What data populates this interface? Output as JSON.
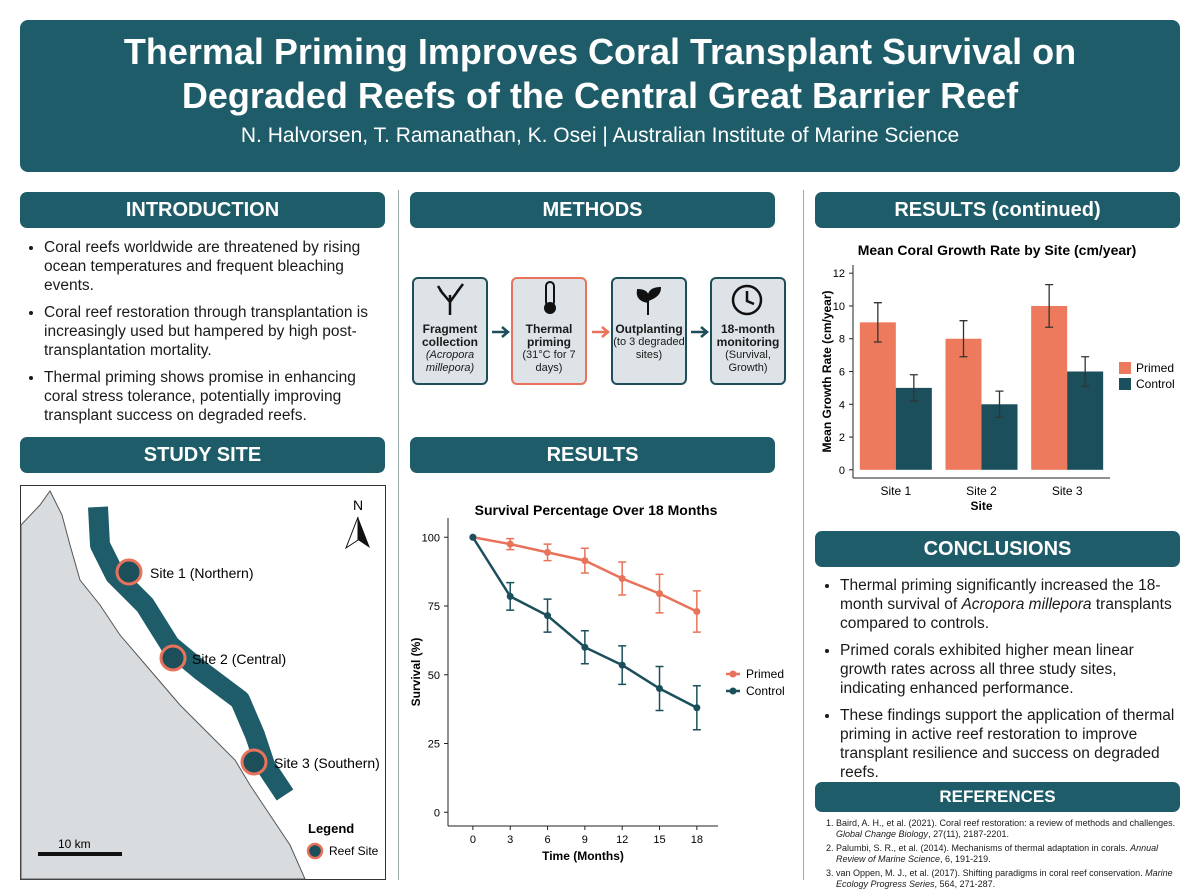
{
  "header": {
    "title": "Thermal Priming Improves Coral Transplant Survival on Degraded Reefs of the Central Great Barrier Reef",
    "authors": "N. Halvorsen, T. Ramanathan, K. Osei | Australian Institute of Marine Science"
  },
  "introduction": {
    "heading": "INTRODUCTION",
    "bullets": [
      "Coral reefs worldwide are threatened by rising ocean temperatures and frequent bleaching events.",
      "Coral reef restoration through transplantation is increasingly used but hampered by high post-transplantation mortality.",
      "Thermal priming shows promise in enhancing coral stress tolerance, potentially improving transplant success on degraded reefs."
    ]
  },
  "study_site": {
    "heading": "STUDY SITE",
    "sites": [
      "Site 1 (Northern)",
      "Site 2 (Central)",
      "Site 3 (Southern)"
    ],
    "north": "N",
    "scale": "10 km",
    "legend_title": "Legend",
    "legend_item": "Reef Site"
  },
  "methods": {
    "heading": "METHODS",
    "steps": [
      {
        "title": "Fragment collection",
        "detail": "(Acropora millepora)"
      },
      {
        "title": "Thermal priming",
        "detail": "(31°C for 7 days)"
      },
      {
        "title": "Outplanting",
        "detail": "(to 3 degraded sites)"
      },
      {
        "title": "18-month monitoring",
        "detail": "(Survival, Growth)"
      }
    ]
  },
  "results": {
    "heading": "RESULTS"
  },
  "results_continued": {
    "heading": "RESULTS (continued)"
  },
  "conclusions": {
    "heading": "CONCLUSIONS",
    "bullets": [
      [
        "Thermal priming significantly increased the 18-month survival of ",
        "Acropora millepora",
        " transplants compared to controls."
      ],
      [
        "Primed corals exhibited higher mean linear growth rates across all three study sites, indicating enhanced performance."
      ],
      [
        "These findings support the application of thermal priming in active reef restoration to improve transplant resilience and success on degraded reefs."
      ]
    ]
  },
  "references": {
    "heading": "REFERENCES",
    "items": [
      [
        "Baird, A. H., et al. (2021). Coral reef restoration: a review of methods and challenges. ",
        "Global Change Biology",
        ", 27(11), 2187-2201."
      ],
      [
        "Palumbi, S. R., et al. (2014). Mechanisms of thermal adaptation in corals. ",
        "Annual Review of Marine Science",
        ", 6, 191-219."
      ],
      [
        "van Oppen, M. J., et al. (2017). Shifting paradigms in coral reef conservation. ",
        "Marine Ecology Progress Series",
        ", 564, 271-287."
      ]
    ]
  },
  "chart_data": [
    {
      "type": "line",
      "title": "Survival Percentage Over 18 Months",
      "x_label": "Time (Months)",
      "y_label": "Survival (%)",
      "x": [
        0,
        3,
        6,
        9,
        12,
        15,
        18
      ],
      "xlim": [
        -2,
        19.7
      ],
      "xticks": [
        0,
        3,
        6,
        9,
        12,
        15,
        18
      ],
      "ylim": [
        -5,
        107
      ],
      "yticks": [
        0,
        25,
        50,
        75,
        100
      ],
      "series": [
        {
          "name": "Primed",
          "color": "#e8735a",
          "values": [
            100,
            97.5,
            94.5,
            91.5,
            85,
            79.5,
            73
          ],
          "errors": [
            0,
            2,
            3,
            4.5,
            6,
            7,
            7.5
          ]
        },
        {
          "name": "Control",
          "color": "#1b4f5c",
          "values": [
            100,
            78.5,
            71.5,
            60,
            53.5,
            45,
            38
          ],
          "errors": [
            0,
            5,
            6,
            6,
            7,
            8,
            8
          ]
        }
      ]
    },
    {
      "type": "bar",
      "title": "Mean Coral Growth Rate by Site (cm/year)",
      "x_label": "Site",
      "y_label": "Mean Growth Rate (cm/year)",
      "categories": [
        "Site 1",
        "Site 2",
        "Site 3"
      ],
      "ylim": [
        -0.5,
        12.5
      ],
      "yticks": [
        0,
        2,
        4,
        6,
        8,
        10,
        12
      ],
      "series": [
        {
          "name": "Primed",
          "color": "#ee7a5e",
          "values": [
            9,
            8,
            10
          ],
          "errors": [
            1.2,
            1.1,
            1.3
          ]
        },
        {
          "name": "Control",
          "color": "#1b4f5c",
          "values": [
            5,
            4,
            6
          ],
          "errors": [
            0.8,
            0.8,
            0.9
          ]
        }
      ]
    }
  ]
}
